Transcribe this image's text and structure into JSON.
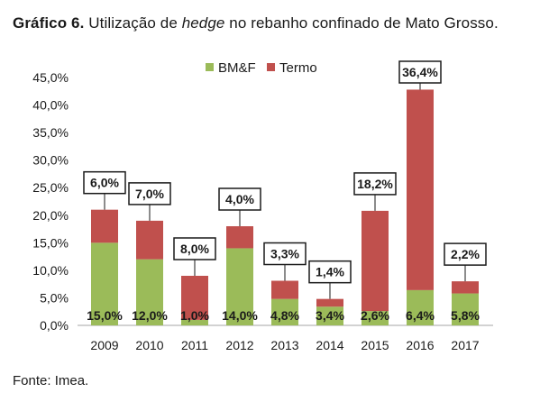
{
  "caption": {
    "prefix": "Gráfico 6.",
    "text1": " Utilização de ",
    "italic": "hedge",
    "text2": " no rebanho confinado de Mato Grosso."
  },
  "source": "Fonte: Imea.",
  "chart_data": {
    "type": "bar",
    "stacked": true,
    "categories": [
      "2009",
      "2010",
      "2011",
      "2012",
      "2013",
      "2014",
      "2015",
      "2016",
      "2017"
    ],
    "series": [
      {
        "name": "BM&F",
        "color": "#9BBB59",
        "values": [
          15.0,
          12.0,
          1.0,
          14.0,
          4.8,
          3.4,
          2.6,
          6.4,
          5.8
        ],
        "labels": [
          "15,0%",
          "12,0%",
          "1,0%",
          "14,0%",
          "4,8%",
          "3,4%",
          "2,6%",
          "6,4%",
          "5,8%"
        ]
      },
      {
        "name": "Termo",
        "color": "#C0504D",
        "values": [
          6.0,
          7.0,
          8.0,
          4.0,
          3.3,
          1.4,
          18.2,
          36.4,
          2.2
        ],
        "labels": [
          "6,0%",
          "7,0%",
          "8,0%",
          "4,0%",
          "3,3%",
          "1,4%",
          "18,2%",
          "36,4%",
          "2,2%"
        ]
      }
    ],
    "ylim": [
      0,
      45
    ],
    "yticks": [
      "0,0%",
      "5,0%",
      "10,0%",
      "15,0%",
      "20,0%",
      "25,0%",
      "30,0%",
      "35,0%",
      "40,0%",
      "45,0%"
    ],
    "legend_position": "top",
    "grid": false
  }
}
